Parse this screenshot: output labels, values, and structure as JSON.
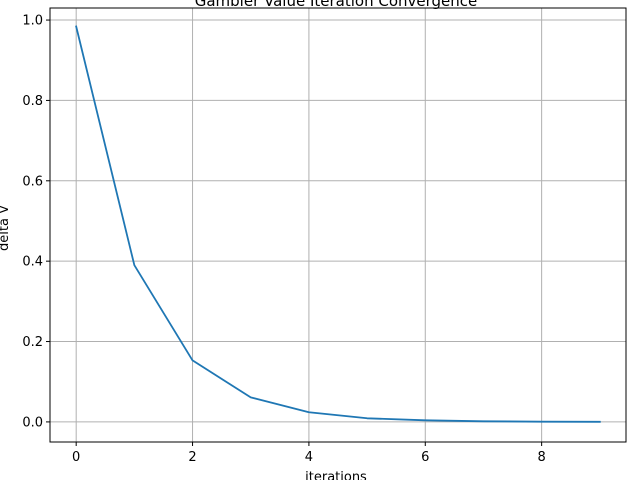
{
  "chart_data": {
    "type": "line",
    "title": "Gambler Value Iteration Convergence",
    "xlabel": "iterations",
    "ylabel": "delta V",
    "x": [
      0,
      1,
      2,
      3,
      4,
      5,
      6,
      7,
      8,
      9
    ],
    "series": [
      {
        "values": [
          0.984,
          0.39,
          0.153,
          0.061,
          0.024,
          0.009,
          0.004,
          0.0015,
          0.0006,
          0.0002
        ],
        "color": "#1f77b4"
      }
    ],
    "xlim": [
      -0.45,
      9.45
    ],
    "ylim": [
      -0.05,
      1.03
    ],
    "xticks": [
      0,
      2,
      4,
      6,
      8
    ],
    "xtick_labels": [
      "0",
      "2",
      "4",
      "6",
      "8"
    ],
    "yticks": [
      0.0,
      0.2,
      0.4,
      0.6,
      0.8,
      1.0
    ],
    "ytick_labels": [
      "0.0",
      "0.2",
      "0.4",
      "0.6",
      "0.8",
      "1.0"
    ],
    "grid": true,
    "grid_color": "#b0b0b0",
    "axes_color": "#000000"
  }
}
